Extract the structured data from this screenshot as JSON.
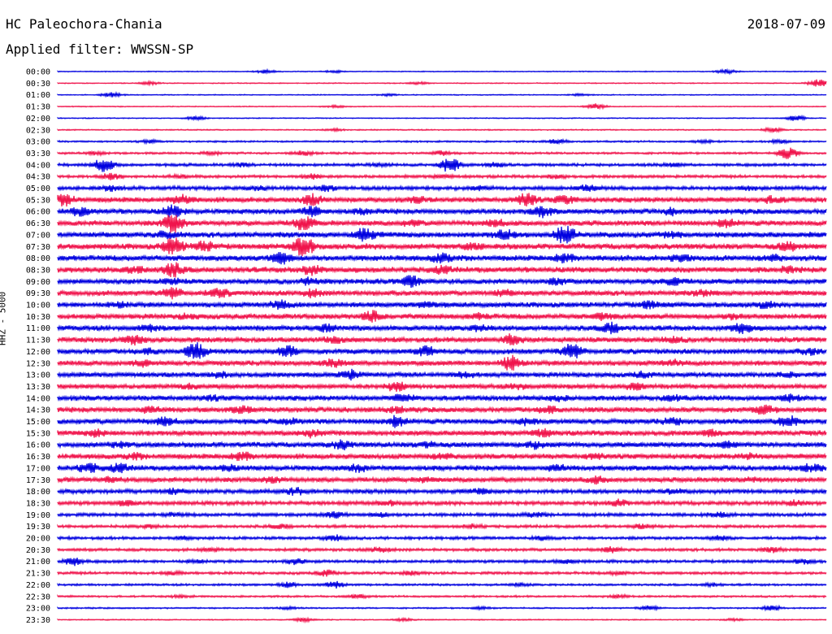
{
  "header": {
    "station": "HC Paleochora-Chania",
    "date": "2018-07-09",
    "filter": "Applied filter: WWSSN-SP"
  },
  "axis": {
    "channel_label": "HHZ - 5000"
  },
  "chart_data": {
    "type": "line",
    "title": "HC Paleochora-Chania",
    "subtitle": "Applied filter: WWSSN-SP",
    "ylabel": "HHZ - 5000",
    "colors": {
      "blue": "#0000e0",
      "red": "#f0144c"
    },
    "rows": [
      {
        "label": "00:00",
        "color": "blue",
        "level": 0.1,
        "bursts": [
          [
            0.27,
            0.5
          ],
          [
            0.87,
            0.6
          ],
          [
            0.36,
            0.3
          ]
        ]
      },
      {
        "label": "00:30",
        "color": "red",
        "level": 0.1,
        "bursts": [
          [
            0.12,
            0.4
          ],
          [
            0.47,
            0.3
          ],
          [
            0.99,
            1.2
          ]
        ]
      },
      {
        "label": "01:00",
        "color": "blue",
        "level": 0.1,
        "bursts": [
          [
            0.07,
            0.7
          ],
          [
            0.43,
            0.3
          ],
          [
            0.68,
            0.3
          ]
        ]
      },
      {
        "label": "01:30",
        "color": "red",
        "level": 0.1,
        "bursts": [
          [
            0.7,
            0.8
          ],
          [
            0.36,
            0.3
          ]
        ]
      },
      {
        "label": "02:00",
        "color": "blue",
        "level": 0.1,
        "bursts": [
          [
            0.18,
            0.5
          ],
          [
            0.96,
            0.8
          ]
        ]
      },
      {
        "label": "02:30",
        "color": "red",
        "level": 0.12,
        "bursts": [
          [
            0.36,
            0.3
          ],
          [
            0.93,
            0.6
          ]
        ]
      },
      {
        "label": "03:00",
        "color": "blue",
        "level": 0.18,
        "bursts": [
          [
            0.12,
            0.4
          ],
          [
            0.65,
            0.7
          ],
          [
            0.84,
            0.4
          ],
          [
            0.94,
            0.5
          ]
        ]
      },
      {
        "label": "03:30",
        "color": "red",
        "level": 0.22,
        "bursts": [
          [
            0.05,
            0.4
          ],
          [
            0.32,
            0.6
          ],
          [
            0.5,
            0.6
          ],
          [
            0.95,
            1.6
          ],
          [
            0.2,
            0.4
          ]
        ]
      },
      {
        "label": "04:00",
        "color": "blue",
        "level": 0.3,
        "bursts": [
          [
            0.06,
            2.0
          ],
          [
            0.51,
            2.2
          ],
          [
            0.57,
            0.6
          ],
          [
            0.24,
            0.4
          ],
          [
            0.42,
            0.4
          ],
          [
            0.8,
            0.4
          ]
        ]
      },
      {
        "label": "04:30",
        "color": "red",
        "level": 0.3,
        "bursts": [
          [
            0.07,
            0.8
          ],
          [
            0.33,
            0.6
          ],
          [
            0.65,
            0.5
          ],
          [
            0.5,
            0.4
          ],
          [
            0.16,
            0.4
          ]
        ]
      },
      {
        "label": "05:00",
        "color": "blue",
        "level": 0.4,
        "bursts": [
          [
            0.07,
            0.6
          ],
          [
            0.35,
            0.7
          ],
          [
            0.69,
            0.8
          ],
          [
            0.26,
            0.4
          ],
          [
            0.55,
            0.4
          ],
          [
            0.9,
            0.4
          ]
        ]
      },
      {
        "label": "05:30",
        "color": "red",
        "level": 0.55,
        "bursts": [
          [
            0.01,
            1.4
          ],
          [
            0.16,
            1.2
          ],
          [
            0.33,
            1.4
          ],
          [
            0.61,
            1.8
          ],
          [
            0.66,
            1.0
          ],
          [
            0.93,
            0.8
          ],
          [
            0.47,
            0.6
          ]
        ]
      },
      {
        "label": "06:00",
        "color": "blue",
        "level": 0.55,
        "bursts": [
          [
            0.03,
            1.0
          ],
          [
            0.15,
            1.4
          ],
          [
            0.33,
            1.2
          ],
          [
            0.63,
            1.4
          ],
          [
            0.8,
            0.7
          ],
          [
            0.4,
            0.6
          ]
        ]
      },
      {
        "label": "06:30",
        "color": "red",
        "level": 0.55,
        "bursts": [
          [
            0.15,
            2.6
          ],
          [
            0.32,
            1.8
          ],
          [
            0.87,
            1.0
          ],
          [
            0.57,
            0.8
          ],
          [
            0.46,
            0.6
          ]
        ]
      },
      {
        "label": "07:00",
        "color": "blue",
        "level": 0.6,
        "bursts": [
          [
            0.4,
            1.6
          ],
          [
            0.58,
            1.2
          ],
          [
            0.66,
            2.6
          ],
          [
            0.14,
            0.8
          ],
          [
            0.8,
            0.6
          ]
        ]
      },
      {
        "label": "07:30",
        "color": "red",
        "level": 0.6,
        "bursts": [
          [
            0.15,
            2.4
          ],
          [
            0.19,
            1.4
          ],
          [
            0.32,
            2.8
          ],
          [
            0.95,
            1.0
          ],
          [
            0.54,
            0.8
          ]
        ]
      },
      {
        "label": "08:00",
        "color": "blue",
        "level": 0.6,
        "bursts": [
          [
            0.29,
            1.6
          ],
          [
            0.66,
            1.2
          ],
          [
            0.81,
            0.8
          ],
          [
            0.5,
            1.0
          ],
          [
            0.93,
            0.6
          ]
        ]
      },
      {
        "label": "08:30",
        "color": "red",
        "level": 0.6,
        "bursts": [
          [
            0.15,
            1.8
          ],
          [
            0.1,
            0.8
          ],
          [
            0.33,
            1.2
          ],
          [
            0.5,
            0.8
          ],
          [
            0.95,
            0.6
          ]
        ]
      },
      {
        "label": "09:00",
        "color": "blue",
        "level": 0.55,
        "bursts": [
          [
            0.46,
            1.4
          ],
          [
            0.8,
            1.2
          ],
          [
            0.15,
            0.6
          ],
          [
            0.33,
            0.8
          ],
          [
            0.65,
            0.6
          ]
        ]
      },
      {
        "label": "09:30",
        "color": "red",
        "level": 0.55,
        "bursts": [
          [
            0.21,
            1.0
          ],
          [
            0.15,
            1.4
          ],
          [
            0.33,
            1.0
          ],
          [
            0.58,
            0.6
          ],
          [
            0.84,
            0.6
          ]
        ]
      },
      {
        "label": "10:00",
        "color": "blue",
        "level": 0.55,
        "bursts": [
          [
            0.29,
            1.0
          ],
          [
            0.77,
            0.8
          ],
          [
            0.48,
            0.6
          ],
          [
            0.92,
            0.6
          ],
          [
            0.08,
            0.6
          ]
        ]
      },
      {
        "label": "10:30",
        "color": "red",
        "level": 0.55,
        "bursts": [
          [
            0.41,
            1.4
          ],
          [
            0.71,
            0.8
          ],
          [
            0.17,
            0.6
          ],
          [
            0.88,
            0.6
          ],
          [
            0.55,
            0.6
          ]
        ]
      },
      {
        "label": "11:00",
        "color": "blue",
        "level": 0.55,
        "bursts": [
          [
            0.72,
            1.4
          ],
          [
            0.89,
            1.4
          ],
          [
            0.35,
            0.8
          ],
          [
            0.55,
            0.6
          ],
          [
            0.12,
            0.6
          ]
        ]
      },
      {
        "label": "11:30",
        "color": "red",
        "level": 0.55,
        "bursts": [
          [
            0.1,
            1.2
          ],
          [
            0.59,
            1.2
          ],
          [
            0.36,
            0.8
          ],
          [
            0.8,
            0.6
          ]
        ]
      },
      {
        "label": "12:00",
        "color": "blue",
        "level": 0.55,
        "bursts": [
          [
            0.18,
            2.2
          ],
          [
            0.3,
            1.4
          ],
          [
            0.48,
            1.2
          ],
          [
            0.67,
            2.0
          ],
          [
            0.98,
            0.6
          ],
          [
            0.12,
            0.6
          ]
        ]
      },
      {
        "label": "12:30",
        "color": "red",
        "level": 0.55,
        "bursts": [
          [
            0.59,
            2.0
          ],
          [
            0.36,
            0.8
          ],
          [
            0.11,
            0.6
          ],
          [
            0.8,
            0.6
          ]
        ]
      },
      {
        "label": "13:00",
        "color": "blue",
        "level": 0.5,
        "bursts": [
          [
            0.38,
            1.2
          ],
          [
            0.53,
            0.6
          ],
          [
            0.21,
            0.6
          ],
          [
            0.76,
            0.6
          ],
          [
            0.95,
            0.6
          ]
        ]
      },
      {
        "label": "13:30",
        "color": "red",
        "level": 0.5,
        "bursts": [
          [
            0.44,
            1.2
          ],
          [
            0.75,
            0.8
          ],
          [
            0.17,
            0.6
          ],
          [
            0.6,
            0.6
          ]
        ]
      },
      {
        "label": "14:00",
        "color": "blue",
        "level": 0.55,
        "bursts": [
          [
            0.45,
            0.8
          ],
          [
            0.8,
            0.6
          ],
          [
            0.95,
            0.8
          ],
          [
            0.2,
            0.5
          ],
          [
            0.65,
            0.5
          ]
        ]
      },
      {
        "label": "14:30",
        "color": "red",
        "level": 0.55,
        "bursts": [
          [
            0.24,
            0.8
          ],
          [
            0.64,
            0.8
          ],
          [
            0.92,
            1.0
          ],
          [
            0.44,
            0.6
          ],
          [
            0.12,
            0.6
          ]
        ]
      },
      {
        "label": "15:00",
        "color": "blue",
        "level": 0.55,
        "bursts": [
          [
            0.14,
            1.0
          ],
          [
            0.44,
            1.4
          ],
          [
            0.95,
            1.6
          ],
          [
            0.61,
            0.8
          ],
          [
            0.8,
            0.8
          ],
          [
            0.3,
            0.6
          ]
        ]
      },
      {
        "label": "15:30",
        "color": "red",
        "level": 0.55,
        "bursts": [
          [
            0.05,
            0.8
          ],
          [
            0.33,
            0.8
          ],
          [
            0.63,
            0.8
          ],
          [
            0.85,
            0.6
          ]
        ]
      },
      {
        "label": "16:00",
        "color": "blue",
        "level": 0.55,
        "bursts": [
          [
            0.37,
            1.0
          ],
          [
            0.62,
            0.8
          ],
          [
            0.08,
            0.6
          ],
          [
            0.87,
            0.8
          ],
          [
            0.48,
            0.6
          ]
        ]
      },
      {
        "label": "16:30",
        "color": "red",
        "level": 0.55,
        "bursts": [
          [
            0.24,
            1.2
          ],
          [
            0.5,
            0.6
          ],
          [
            0.7,
            0.6
          ],
          [
            0.1,
            0.6
          ],
          [
            0.9,
            0.6
          ]
        ]
      },
      {
        "label": "17:00",
        "color": "blue",
        "level": 0.55,
        "bursts": [
          [
            0.04,
            1.2
          ],
          [
            0.08,
            1.0
          ],
          [
            0.39,
            0.8
          ],
          [
            0.65,
            0.6
          ],
          [
            0.98,
            0.8
          ],
          [
            0.22,
            0.6
          ]
        ]
      },
      {
        "label": "17:30",
        "color": "red",
        "level": 0.5,
        "bursts": [
          [
            0.07,
            0.6
          ],
          [
            0.48,
            0.6
          ],
          [
            0.7,
            0.8
          ],
          [
            0.28,
            0.6
          ],
          [
            0.9,
            0.5
          ]
        ]
      },
      {
        "label": "18:00",
        "color": "blue",
        "level": 0.45,
        "bursts": [
          [
            0.15,
            0.6
          ],
          [
            0.31,
            0.8
          ],
          [
            0.55,
            0.6
          ],
          [
            0.8,
            0.6
          ]
        ]
      },
      {
        "label": "18:30",
        "color": "red",
        "level": 0.4,
        "bursts": [
          [
            0.09,
            0.6
          ],
          [
            0.43,
            0.6
          ],
          [
            0.73,
            0.8
          ],
          [
            0.96,
            0.6
          ]
        ]
      },
      {
        "label": "19:00",
        "color": "blue",
        "level": 0.35,
        "bursts": [
          [
            0.36,
            0.8
          ],
          [
            0.42,
            0.5
          ],
          [
            0.62,
            0.5
          ],
          [
            0.86,
            0.6
          ],
          [
            0.15,
            0.4
          ]
        ]
      },
      {
        "label": "19:30",
        "color": "red",
        "level": 0.3,
        "bursts": [
          [
            0.29,
            0.6
          ],
          [
            0.54,
            0.5
          ],
          [
            0.76,
            0.5
          ],
          [
            0.12,
            0.4
          ]
        ]
      },
      {
        "label": "20:00",
        "color": "blue",
        "level": 0.3,
        "bursts": [
          [
            0.36,
            0.8
          ],
          [
            0.63,
            0.5
          ],
          [
            0.86,
            0.6
          ],
          [
            0.16,
            0.4
          ]
        ]
      },
      {
        "label": "20:30",
        "color": "red",
        "level": 0.3,
        "bursts": [
          [
            0.42,
            0.8
          ],
          [
            0.72,
            0.8
          ],
          [
            0.93,
            0.6
          ],
          [
            0.2,
            0.4
          ]
        ]
      },
      {
        "label": "21:00",
        "color": "blue",
        "level": 0.3,
        "bursts": [
          [
            0.02,
            1.0
          ],
          [
            0.31,
            0.8
          ],
          [
            0.66,
            0.5
          ],
          [
            0.97,
            0.6
          ],
          [
            0.18,
            0.4
          ]
        ]
      },
      {
        "label": "21:30",
        "color": "red",
        "level": 0.28,
        "bursts": [
          [
            0.35,
            0.8
          ],
          [
            0.46,
            0.5
          ],
          [
            0.73,
            0.4
          ],
          [
            0.15,
            0.4
          ]
        ]
      },
      {
        "label": "22:00",
        "color": "blue",
        "level": 0.22,
        "bursts": [
          [
            0.3,
            0.8
          ],
          [
            0.36,
            0.9
          ],
          [
            0.6,
            0.4
          ],
          [
            0.85,
            0.4
          ]
        ]
      },
      {
        "label": "22:30",
        "color": "red",
        "level": 0.2,
        "bursts": [
          [
            0.39,
            0.5
          ],
          [
            0.73,
            0.4
          ],
          [
            0.16,
            0.3
          ]
        ]
      },
      {
        "label": "23:00",
        "color": "blue",
        "level": 0.15,
        "bursts": [
          [
            0.77,
            0.6
          ],
          [
            0.93,
            0.7
          ],
          [
            0.3,
            0.3
          ],
          [
            0.55,
            0.3
          ]
        ]
      },
      {
        "label": "23:30",
        "color": "red",
        "level": 0.12,
        "bursts": [
          [
            0.32,
            0.5
          ],
          [
            0.45,
            0.3
          ],
          [
            0.88,
            0.3
          ]
        ]
      }
    ]
  }
}
